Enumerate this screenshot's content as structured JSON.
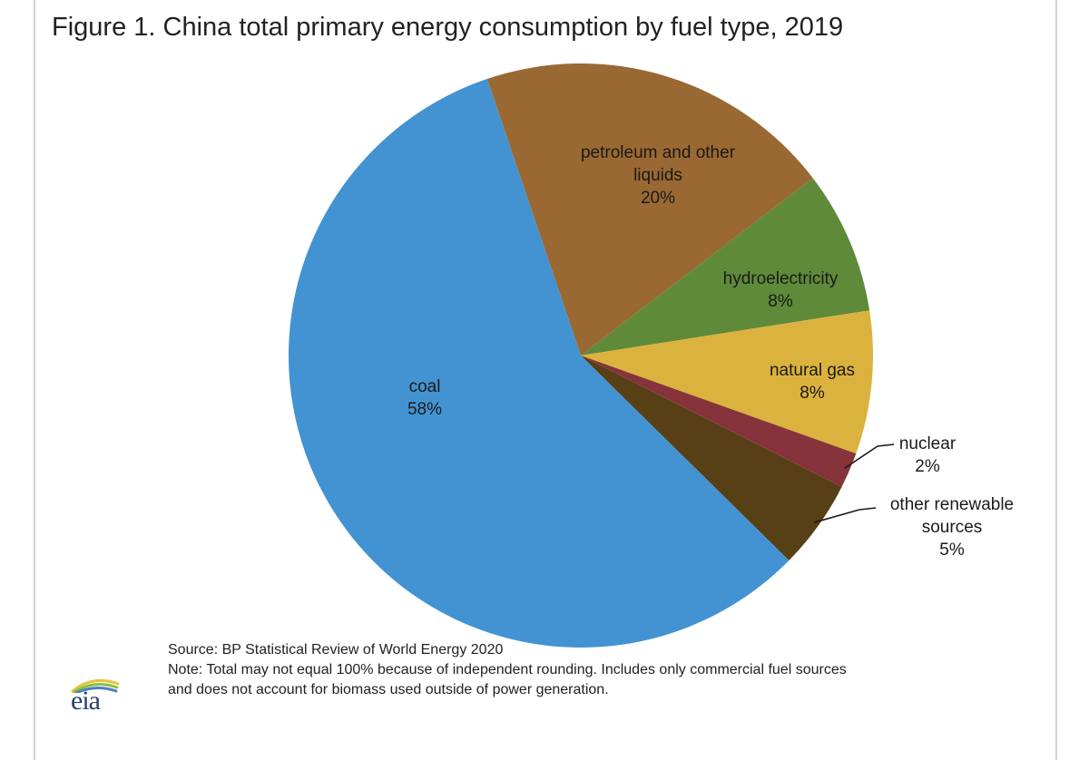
{
  "chart_data": {
    "type": "pie",
    "title": "Figure 1. China total primary energy consumption by fuel type, 2019",
    "slices": [
      {
        "label_lines": [
          "coal"
        ],
        "value_label": "58%",
        "value": 58,
        "color": "#4393d2"
      },
      {
        "label_lines": [
          "petroleum and other",
          "liquids"
        ],
        "value_label": "20%",
        "value": 20,
        "color": "#9a6832"
      },
      {
        "label_lines": [
          "hydroelectricity"
        ],
        "value_label": "8%",
        "value": 8,
        "color": "#5e8a3a"
      },
      {
        "label_lines": [
          "natural gas"
        ],
        "value_label": "8%",
        "value": 8,
        "color": "#dcb23e"
      },
      {
        "label_lines": [
          "nuclear"
        ],
        "value_label": "2%",
        "value": 2,
        "color": "#86333c"
      },
      {
        "label_lines": [
          "other renewable",
          "sources"
        ],
        "value_label": "5%",
        "value": 5,
        "color": "#574016"
      }
    ]
  },
  "footer": {
    "source": "Source: BP Statistical Review of World Energy 2020",
    "note_line1": "Note: Total may not equal 100% because of independent rounding. Includes only commercial fuel sources",
    "note_line2": "and does not account for biomass used outside of power generation."
  },
  "logo": {
    "text": "eia"
  },
  "colors": {
    "logo_arc_blue": "#4a7fc1",
    "logo_arc_green": "#8bbf3f",
    "logo_arc_yellow": "#e6c53a"
  }
}
